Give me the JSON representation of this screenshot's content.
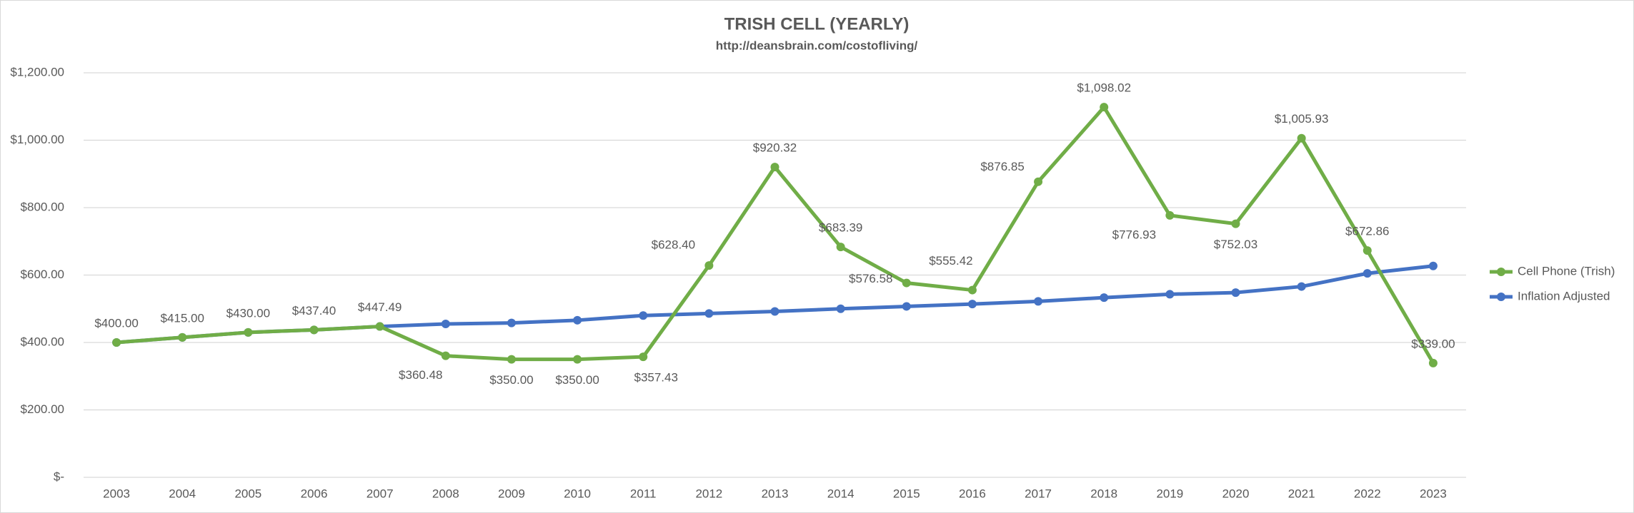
{
  "chart_data": {
    "type": "line",
    "title": "TRISH CELL (YEARLY)",
    "subtitle": "http://deansbrain.com/costofliving/",
    "categories": [
      "2003",
      "2004",
      "2005",
      "2006",
      "2007",
      "2008",
      "2009",
      "2010",
      "2011",
      "2012",
      "2013",
      "2014",
      "2015",
      "2016",
      "2017",
      "2018",
      "2019",
      "2020",
      "2021",
      "2022",
      "2023"
    ],
    "series": [
      {
        "name": "Cell Phone (Trish)",
        "color": "#70ad47",
        "values": [
          400,
          415,
          430,
          437.4,
          447.49,
          360.48,
          350,
          350,
          357.43,
          628.4,
          920.32,
          683.39,
          576.58,
          555.42,
          876.85,
          1098.02,
          776.93,
          752.03,
          1005.93,
          672.86,
          339
        ],
        "value_labels": [
          "$400.00",
          "$415.00",
          "$430.00",
          "$437.40",
          "$447.49",
          "$360.48",
          "$350.00",
          "$350.00",
          "$357.43",
          "$628.40",
          "$920.32",
          "$683.39",
          "$576.58",
          "$555.42",
          "$876.85",
          "$1,098.02",
          "$776.93",
          "$752.03",
          "$1,005.93",
          "$672.86",
          "$339.00"
        ]
      },
      {
        "name": "Inflation Adjusted",
        "color": "#4472c4",
        "values": [
          400,
          415,
          430,
          437.4,
          447.49,
          455,
          458,
          466,
          480,
          486,
          492,
          500,
          507,
          514,
          522,
          533,
          543,
          548,
          566,
          605,
          627
        ]
      }
    ],
    "ylim": [
      0,
      1200
    ],
    "yticks": [
      {
        "value": 0,
        "label": "$-"
      },
      {
        "value": 200,
        "label": "$200.00"
      },
      {
        "value": 400,
        "label": "$400.00"
      },
      {
        "value": 600,
        "label": "$600.00"
      },
      {
        "value": 800,
        "label": "$800.00"
      },
      {
        "value": 1000,
        "label": "$1,000.00"
      },
      {
        "value": 1200,
        "label": "$1,200.00"
      }
    ],
    "grid": true,
    "legend": "right"
  }
}
